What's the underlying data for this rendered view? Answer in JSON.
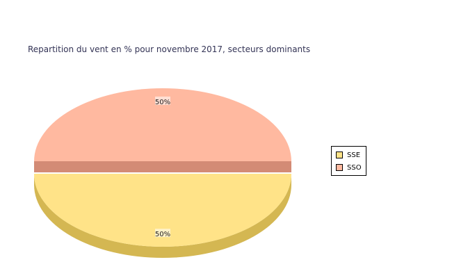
{
  "chart_data": {
    "type": "pie",
    "title": "Repartition du vent en % pour novembre 2017, secteurs dominants",
    "categories": [
      "SSE",
      "SSO"
    ],
    "values": [
      50,
      50
    ],
    "data_labels": [
      "50%",
      "50%"
    ],
    "colors": [
      "#FFE388",
      "#FFB9A0"
    ],
    "shade_colors": [
      "#D4B752",
      "#D38B75"
    ],
    "legend_placement": "right",
    "three_d": true,
    "exploded": true
  }
}
